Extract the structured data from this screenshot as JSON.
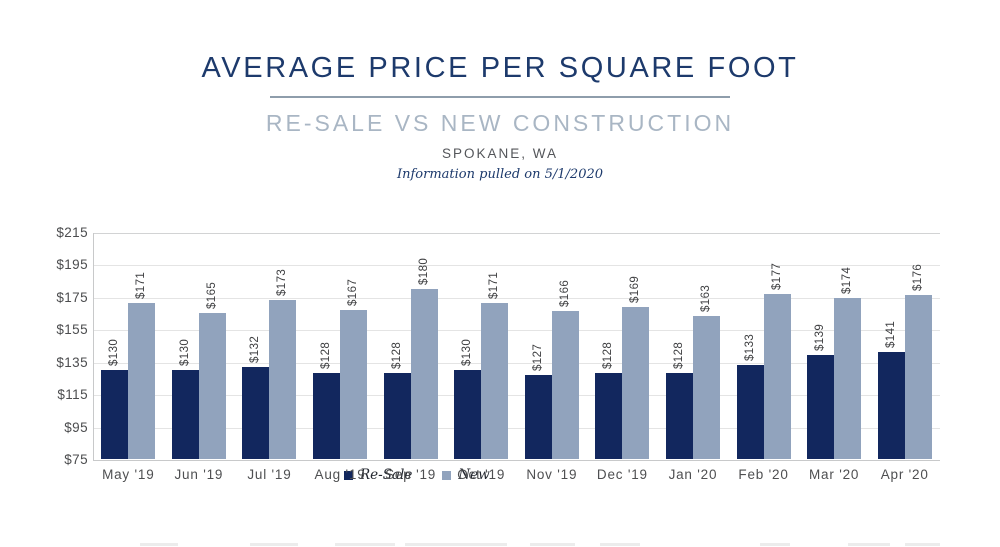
{
  "header": {
    "title": "AVERAGE PRICE PER SQUARE FOOT",
    "subtitle": "RE-SALE VS NEW CONSTRUCTION",
    "location": "SPOKANE, WA",
    "note": "Information pulled on 5/1/2020"
  },
  "colors": {
    "resale_bar": "#12275e",
    "new_bar": "#91a3bd",
    "title_text": "#1d3a6c",
    "subtitle_text": "#a9b6c4",
    "divider": "#8e9dab",
    "axis_text": "#4c4d4f",
    "value_text": "#3e3f41",
    "gridline": "#e4e4e4",
    "axis_line": "#c8c9ca"
  },
  "legend": {
    "items": [
      {
        "label": "Re-Sale",
        "color": "#12275e"
      },
      {
        "label": "New",
        "color": "#91a3bd"
      }
    ]
  },
  "chart_data": {
    "type": "bar",
    "title": "Average Price Per Square Foot",
    "subtitle": "Re-Sale vs New Construction",
    "location": "Spokane, WA",
    "categories": [
      "May '19",
      "Jun '19",
      "Jul '19",
      "Aug '19",
      "Sep '19",
      "Oct '19",
      "Nov '19",
      "Dec '19",
      "Jan '20",
      "Feb '20",
      "Mar '20",
      "Apr '20"
    ],
    "series": [
      {
        "name": "Re-Sale",
        "color": "#12275e",
        "values": [
          130,
          130,
          132,
          128,
          128,
          130,
          127,
          128,
          128,
          133,
          139,
          141
        ],
        "labels": [
          "$130",
          "$130",
          "$132",
          "$128",
          "$128",
          "$130",
          "$127",
          "$128",
          "$128",
          "$133",
          "$139",
          "$141"
        ]
      },
      {
        "name": "New",
        "color": "#91a3bd",
        "values": [
          171,
          165,
          173,
          167,
          180,
          171,
          166,
          169,
          163,
          177,
          174,
          176
        ],
        "labels": [
          "$171",
          "$165",
          "$173",
          "$167",
          "$180",
          "$171",
          "$166",
          "$169",
          "$163",
          "$177",
          "$174",
          "$176"
        ]
      }
    ],
    "ylim": [
      75,
      215
    ],
    "ytick_step": 20,
    "ytick_labels": [
      "$215",
      "$195",
      "$175",
      "$155",
      "$135",
      "$115",
      "$95",
      "$75"
    ],
    "grid": "horizontal",
    "legend_position": "inside-top-left",
    "value_label_rotation": -90,
    "xlabel": "",
    "ylabel": ""
  },
  "footer_fragment": {
    "dashes": [
      [
        140,
        38
      ],
      [
        250,
        48
      ],
      [
        335,
        60
      ],
      [
        405,
        62
      ],
      [
        455,
        52
      ],
      [
        530,
        45
      ],
      [
        600,
        40
      ],
      [
        760,
        30
      ],
      [
        848,
        42
      ],
      [
        905,
        35
      ]
    ]
  }
}
